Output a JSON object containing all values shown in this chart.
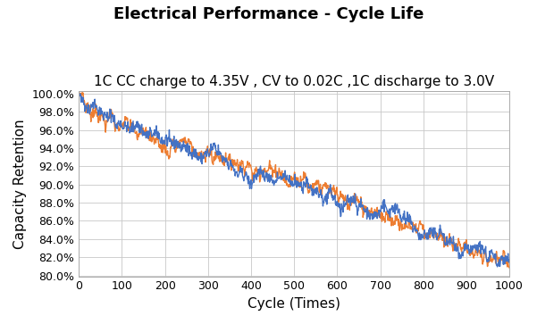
{
  "title": "Electrical Performance - Cycle Life",
  "subtitle": "1C CC charge to 4.35V , CV to 0.02C ,1C discharge to 3.0V",
  "xlabel": "Cycle (Times)",
  "ylabel": "Capacity Retention",
  "xlim": [
    0,
    1000
  ],
  "ylim": [
    0.799,
    1.003
  ],
  "yticks": [
    0.8,
    0.82,
    0.84,
    0.86,
    0.88,
    0.9,
    0.92,
    0.94,
    0.96,
    0.98,
    1.0
  ],
  "xticks": [
    0,
    100,
    200,
    300,
    400,
    500,
    600,
    700,
    800,
    900,
    1000
  ],
  "line1_color": "#4472C4",
  "line2_color": "#ED7D31",
  "n_points": 1000,
  "seed1": 42,
  "seed2": 7,
  "background_color": "#FFFFFF",
  "grid_color": "#C8C8C8",
  "title_fontsize": 13,
  "subtitle_fontsize": 11,
  "label_fontsize": 11,
  "tick_fontsize": 9
}
